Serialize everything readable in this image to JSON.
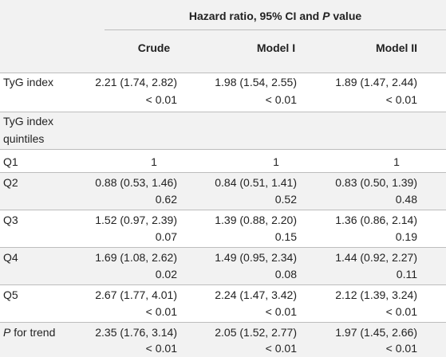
{
  "table": {
    "group_header_prefix": "Hazard ratio, 95% CI and ",
    "group_header_p": "P",
    "group_header_suffix": " value",
    "columns": [
      "Crude",
      "Model I",
      "Model II"
    ],
    "rows": [
      {
        "label": "TyG index",
        "crude": [
          "2.21 (1.74, 2.82)",
          "< 0.01"
        ],
        "m1": [
          "1.98 (1.54, 2.55)",
          "< 0.01"
        ],
        "m2": [
          "1.89 (1.47, 2.44)",
          "< 0.01"
        ]
      },
      {
        "label": "TyG index quintiles",
        "label_lines": [
          "TyG index",
          "quintiles"
        ]
      },
      {
        "label": "Q1",
        "crude": [
          "1"
        ],
        "m1": [
          "1"
        ],
        "m2": [
          "1"
        ]
      },
      {
        "label": "Q2",
        "crude": [
          "0.88 (0.53, 1.46)",
          "0.62"
        ],
        "m1": [
          "0.84 (0.51, 1.41)",
          "0.52"
        ],
        "m2": [
          "0.83 (0.50, 1.39)",
          "0.48"
        ]
      },
      {
        "label": "Q3",
        "crude": [
          "1.52 (0.97, 2.39)",
          "0.07"
        ],
        "m1": [
          "1.39 (0.88, 2.20)",
          "0.15"
        ],
        "m2": [
          "1.36 (0.86, 2.14)",
          "0.19"
        ]
      },
      {
        "label": "Q4",
        "crude": [
          "1.69 (1.08, 2.62)",
          "0.02"
        ],
        "m1": [
          "1.49 (0.95, 2.34)",
          "0.08"
        ],
        "m2": [
          "1.44 (0.92, 2.27)",
          "0.11"
        ]
      },
      {
        "label": "Q5",
        "crude": [
          "2.67 (1.77, 4.01)",
          "< 0.01"
        ],
        "m1": [
          "2.24 (1.47, 3.42)",
          "< 0.01"
        ],
        "m2": [
          "2.12 (1.39, 3.24)",
          "< 0.01"
        ]
      },
      {
        "label_italic": "P",
        "label_rest": " for trend",
        "crude": [
          "2.35 (1.76, 3.14)",
          "< 0.01"
        ],
        "m1": [
          "2.05 (1.52, 2.77)",
          "< 0.01"
        ],
        "m2": [
          "1.97 (1.45, 2.66)",
          "< 0.01"
        ]
      }
    ]
  }
}
